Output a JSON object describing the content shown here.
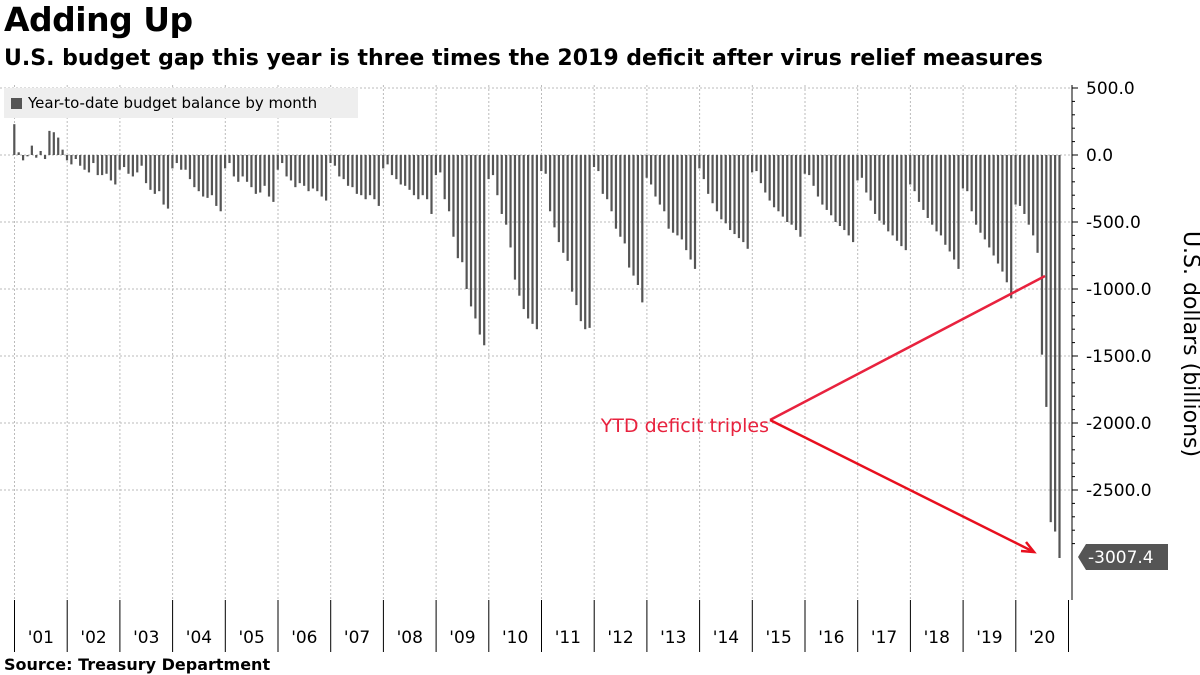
{
  "title": "Adding Up",
  "subtitle": "U.S. budget gap this year is three times the 2019 deficit after virus relief measures",
  "source": "Source: Treasury Department",
  "colors": {
    "bar": "#555555",
    "annotation": "#e8223e",
    "arrow": "#e8101f",
    "callout_bg": "#555555",
    "grid": "#bbbbbb",
    "legend_bg": "#eeeeee"
  },
  "chart_data": {
    "type": "bar",
    "legend": [
      "Year-to-date budget balance by month"
    ],
    "legend_position": "top-left",
    "ylabel": "U.S. dollars (billions)",
    "ylim": [
      -3350,
      550
    ],
    "y_ticks": [
      "500.0",
      "0.0",
      "-500.0",
      "-1000.0",
      "-1500.0",
      "-2000.0",
      "-2500.0"
    ],
    "y_tick_values": [
      500,
      0,
      -500,
      -1000,
      -1500,
      -2000,
      -2500
    ],
    "x_tick_labels": [
      "'01",
      "'02",
      "'03",
      "'04",
      "'05",
      "'06",
      "'07",
      "'08",
      "'09",
      "'10",
      "'11",
      "'12",
      "'13",
      "'14",
      "'15",
      "'16",
      "'17",
      "'18",
      "'19",
      "'20"
    ],
    "grid": true,
    "last_value_label": "-3007.4",
    "annotation": "YTD deficit triples",
    "series": [
      {
        "name": "Year-to-date budget balance by month",
        "start": "2001-01",
        "values": [
          230,
          20,
          -40,
          -10,
          70,
          -20,
          30,
          -30,
          180,
          170,
          130,
          40,
          -40,
          -70,
          -30,
          -80,
          -110,
          -130,
          -60,
          -150,
          -150,
          -140,
          -190,
          -220,
          -110,
          -90,
          -140,
          -160,
          -130,
          -80,
          -210,
          -260,
          -290,
          -270,
          -370,
          -400,
          -100,
          -60,
          -110,
          -110,
          -180,
          -240,
          -270,
          -310,
          -320,
          -300,
          -380,
          -420,
          -100,
          -60,
          -160,
          -200,
          -160,
          -200,
          -240,
          -290,
          -280,
          -230,
          -310,
          -350,
          -110,
          -60,
          -160,
          -190,
          -240,
          -210,
          -230,
          -270,
          -250,
          -270,
          -310,
          -340,
          -60,
          -80,
          -160,
          -180,
          -230,
          -240,
          -290,
          -300,
          -330,
          -300,
          -330,
          -380,
          -100,
          -70,
          -150,
          -180,
          -220,
          -230,
          -260,
          -300,
          -330,
          -300,
          -330,
          -440,
          -150,
          -130,
          -330,
          -420,
          -610,
          -770,
          -800,
          -1000,
          -1130,
          -1220,
          -1340,
          -1420,
          -180,
          -150,
          -300,
          -440,
          -520,
          -690,
          -930,
          -1050,
          -1150,
          -1220,
          -1260,
          -1300,
          -120,
          -140,
          -420,
          -540,
          -650,
          -730,
          -790,
          -1020,
          -1120,
          -1240,
          -1300,
          -1290,
          -90,
          -120,
          -290,
          -330,
          -420,
          -550,
          -610,
          -660,
          -840,
          -900,
          -970,
          -1100,
          -170,
          -220,
          -310,
          -370,
          -420,
          -550,
          -580,
          -600,
          -630,
          -710,
          -780,
          -850,
          -100,
          -180,
          -290,
          -360,
          -420,
          -480,
          -510,
          -560,
          -590,
          -620,
          -650,
          -700,
          -130,
          -120,
          -210,
          -280,
          -340,
          -390,
          -420,
          -460,
          -500,
          -520,
          -560,
          -610,
          -140,
          -150,
          -230,
          -310,
          -370,
          -410,
          -450,
          -500,
          -530,
          -560,
          -600,
          -650,
          -190,
          -170,
          -280,
          -340,
          -440,
          -490,
          -520,
          -570,
          -600,
          -640,
          -680,
          -710,
          -220,
          -270,
          -350,
          -410,
          -470,
          -520,
          -570,
          -600,
          -670,
          -720,
          -780,
          -850,
          -250,
          -270,
          -420,
          -520,
          -580,
          -630,
          -690,
          -750,
          -810,
          -870,
          -950,
          -1070,
          -370,
          -380,
          -440,
          -520,
          -600,
          -730,
          -1490,
          -1880,
          -2740,
          -2810,
          -3007.4
        ]
      }
    ]
  }
}
